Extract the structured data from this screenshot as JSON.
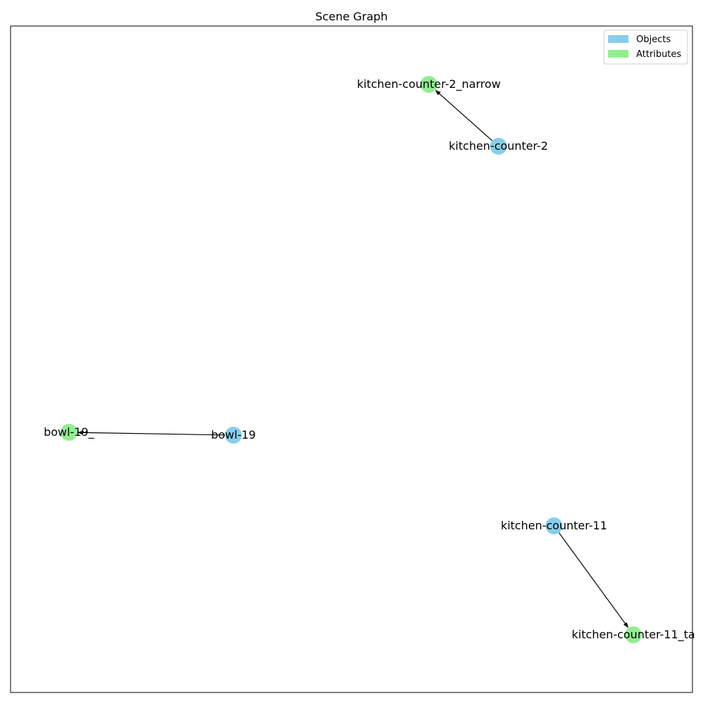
{
  "title": "Scene Graph",
  "legend": [
    {
      "label": "Objects",
      "color": "#87ceeb"
    },
    {
      "label": "Attributes",
      "color": "#90ee90"
    }
  ],
  "colors": {
    "object": "#87ceeb",
    "attribute": "#90ee90",
    "edge": "#000000",
    "frame": "#000000"
  },
  "nodes": [
    {
      "id": "kitchen-counter-2",
      "label": "kitchen-counter-2",
      "kind": "object"
    },
    {
      "id": "kitchen-counter-2_narrow",
      "label": "kitchen-counter-2_narrow",
      "kind": "attribute"
    },
    {
      "id": "bowl-19",
      "label": "bowl-19",
      "kind": "object"
    },
    {
      "id": "bowl-19_",
      "label": "bowl-19_",
      "kind": "attribute"
    },
    {
      "id": "kitchen-counter-11",
      "label": "kitchen-counter-11",
      "kind": "object"
    },
    {
      "id": "kitchen-counter-11_ta",
      "label": "kitchen-counter-11_ta",
      "kind": "attribute"
    }
  ],
  "edges": [
    {
      "from": "kitchen-counter-2",
      "to": "kitchen-counter-2_narrow"
    },
    {
      "from": "bowl-19",
      "to": "bowl-19_"
    },
    {
      "from": "kitchen-counter-11",
      "to": "kitchen-counter-11_ta"
    }
  ]
}
